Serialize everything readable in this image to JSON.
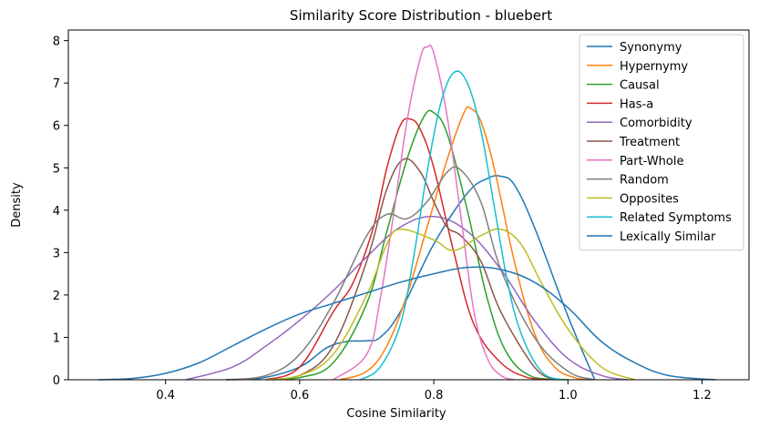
{
  "chart_data": {
    "type": "line",
    "title": "Similarity Score Distribution - bluebert",
    "xlabel": "Cosine Similarity",
    "ylabel": "Density",
    "xlim": [
      0.255,
      1.27
    ],
    "ylim": [
      0,
      8.25
    ],
    "xticks": [
      0.4,
      0.6,
      0.8,
      1.0,
      1.2
    ],
    "xtick_labels": [
      "0.4",
      "0.6",
      "0.8",
      "1.0",
      "1.2"
    ],
    "yticks": [
      0,
      1,
      2,
      3,
      4,
      5,
      6,
      7,
      8
    ],
    "ytick_labels": [
      "0",
      "1",
      "2",
      "3",
      "4",
      "5",
      "6",
      "7",
      "8"
    ],
    "grid": false,
    "legend_position": "top-right",
    "series": [
      {
        "name": "Synonymy",
        "color": "#1f77b4",
        "x": [
          0.49,
          0.54,
          0.6,
          0.64,
          0.67,
          0.7,
          0.72,
          0.75,
          0.8,
          0.85,
          0.88,
          0.9,
          0.92,
          0.95,
          1.0,
          1.04
        ],
        "y": [
          0.0,
          0.03,
          0.3,
          0.75,
          0.9,
          0.92,
          1.0,
          1.6,
          3.2,
          4.4,
          4.75,
          4.8,
          4.6,
          3.6,
          1.5,
          0.0
        ]
      },
      {
        "name": "Hypernymy",
        "color": "#ff7f0e",
        "x": [
          0.66,
          0.7,
          0.73,
          0.76,
          0.79,
          0.82,
          0.845,
          0.855,
          0.87,
          0.89,
          0.92,
          0.95,
          0.98,
          1.01,
          1.03
        ],
        "y": [
          0.0,
          0.2,
          0.8,
          2.0,
          3.6,
          5.2,
          6.3,
          6.4,
          6.1,
          5.0,
          2.8,
          1.1,
          0.3,
          0.05,
          0.0
        ]
      },
      {
        "name": "Causal",
        "color": "#2ca02c",
        "x": [
          0.56,
          0.6,
          0.65,
          0.7,
          0.73,
          0.76,
          0.785,
          0.8,
          0.82,
          0.85,
          0.88,
          0.91,
          0.95,
          1.0
        ],
        "y": [
          0.0,
          0.05,
          0.4,
          1.8,
          3.5,
          5.2,
          6.2,
          6.3,
          5.8,
          4.0,
          1.9,
          0.6,
          0.05,
          0.0
        ]
      },
      {
        "name": "Has-a",
        "color": "#d62728",
        "x": [
          0.55,
          0.6,
          0.65,
          0.68,
          0.71,
          0.73,
          0.75,
          0.765,
          0.78,
          0.8,
          0.83,
          0.86,
          0.9,
          0.94,
          0.97
        ],
        "y": [
          0.0,
          0.3,
          1.6,
          2.3,
          3.6,
          5.0,
          6.0,
          6.15,
          5.9,
          5.0,
          3.0,
          1.3,
          0.4,
          0.05,
          0.0
        ]
      },
      {
        "name": "Comorbidity",
        "color": "#9467bd",
        "x": [
          0.43,
          0.5,
          0.55,
          0.6,
          0.65,
          0.7,
          0.75,
          0.8,
          0.85,
          0.9,
          0.95,
          1.0,
          1.05,
          1.09
        ],
        "y": [
          0.0,
          0.3,
          0.8,
          1.4,
          2.1,
          2.9,
          3.6,
          3.85,
          3.5,
          2.6,
          1.4,
          0.5,
          0.1,
          0.0
        ]
      },
      {
        "name": "Treatment",
        "color": "#8c564b",
        "x": [
          0.55,
          0.6,
          0.65,
          0.7,
          0.73,
          0.755,
          0.78,
          0.8,
          0.82,
          0.84,
          0.87,
          0.9,
          0.95,
          0.98
        ],
        "y": [
          0.0,
          0.1,
          0.8,
          2.8,
          4.5,
          5.2,
          4.9,
          4.2,
          3.6,
          3.4,
          2.8,
          1.6,
          0.3,
          0.0
        ]
      },
      {
        "name": "Part-Whole",
        "color": "#e377c2",
        "x": [
          0.65,
          0.7,
          0.72,
          0.74,
          0.76,
          0.78,
          0.79,
          0.8,
          0.82,
          0.84,
          0.86,
          0.88,
          0.9,
          0.92
        ],
        "y": [
          0.0,
          0.6,
          1.9,
          3.9,
          6.1,
          7.6,
          7.85,
          7.7,
          6.2,
          3.9,
          1.6,
          0.5,
          0.1,
          0.0
        ]
      },
      {
        "name": "Random",
        "color": "#7f7f7f",
        "x": [
          0.49,
          0.55,
          0.6,
          0.65,
          0.7,
          0.73,
          0.76,
          0.79,
          0.82,
          0.84,
          0.87,
          0.9,
          0.95,
          1.0,
          1.04
        ],
        "y": [
          0.0,
          0.1,
          0.6,
          1.8,
          3.4,
          3.9,
          3.8,
          4.2,
          4.9,
          4.95,
          4.2,
          2.6,
          1.0,
          0.2,
          0.0
        ]
      },
      {
        "name": "Opposites",
        "color": "#bcbd22",
        "x": [
          0.55,
          0.6,
          0.65,
          0.7,
          0.73,
          0.75,
          0.8,
          0.83,
          0.87,
          0.9,
          0.93,
          0.96,
          1.0,
          1.05,
          1.1
        ],
        "y": [
          0.0,
          0.1,
          0.6,
          2.0,
          3.2,
          3.55,
          3.3,
          3.05,
          3.4,
          3.55,
          3.2,
          2.3,
          1.2,
          0.3,
          0.0
        ]
      },
      {
        "name": "Related Symptoms",
        "color": "#17becf",
        "x": [
          0.69,
          0.72,
          0.75,
          0.77,
          0.79,
          0.81,
          0.83,
          0.85,
          0.87,
          0.89,
          0.91,
          0.93,
          0.96,
          0.99
        ],
        "y": [
          0.0,
          0.3,
          1.3,
          2.9,
          4.9,
          6.5,
          7.25,
          7.0,
          5.9,
          4.1,
          2.3,
          1.1,
          0.2,
          0.0
        ]
      },
      {
        "name": "Lexically Similar",
        "color": "#1f77b4",
        "x": [
          0.3,
          0.35,
          0.4,
          0.45,
          0.5,
          0.55,
          0.6,
          0.65,
          0.7,
          0.75,
          0.8,
          0.85,
          0.9,
          0.95,
          1.0,
          1.05,
          1.1,
          1.15,
          1.22
        ],
        "y": [
          0.0,
          0.03,
          0.15,
          0.4,
          0.8,
          1.2,
          1.55,
          1.8,
          2.05,
          2.3,
          2.5,
          2.65,
          2.6,
          2.3,
          1.7,
          0.9,
          0.4,
          0.1,
          0.0
        ]
      }
    ]
  }
}
